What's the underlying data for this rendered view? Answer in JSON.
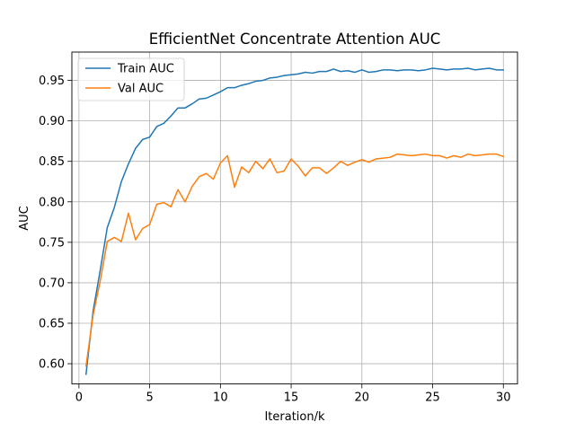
{
  "chart_data": {
    "type": "line",
    "title": "EfficientNet Concentrate Attention AUC",
    "xlabel": "Iteration/k",
    "ylabel": "AUC",
    "xlim": [
      -0.5,
      31.0
    ],
    "ylim": [
      0.575,
      0.985
    ],
    "xticks": [
      0,
      5,
      10,
      15,
      20,
      25,
      30
    ],
    "xtick_labels": [
      "0",
      "5",
      "10",
      "15",
      "20",
      "25",
      "30"
    ],
    "yticks": [
      0.6,
      0.65,
      0.7,
      0.75,
      0.8,
      0.85,
      0.9,
      0.95
    ],
    "ytick_labels": [
      "0.60",
      "0.65",
      "0.70",
      "0.75",
      "0.80",
      "0.85",
      "0.90",
      "0.95"
    ],
    "grid": true,
    "legend_position": "upper-left",
    "x": [
      0.5,
      1.0,
      1.5,
      2.0,
      2.5,
      3.0,
      3.5,
      4.0,
      4.5,
      5.0,
      5.5,
      6.0,
      6.5,
      7.0,
      7.5,
      8.0,
      8.5,
      9.0,
      9.5,
      10.0,
      10.5,
      11.0,
      11.5,
      12.0,
      12.5,
      13.0,
      13.5,
      14.0,
      14.5,
      15.0,
      15.5,
      16.0,
      16.5,
      17.0,
      17.5,
      18.0,
      18.5,
      19.0,
      19.5,
      20.0,
      20.5,
      21.0,
      21.5,
      22.0,
      22.5,
      23.0,
      23.5,
      24.0,
      24.5,
      25.0,
      25.5,
      26.0,
      26.5,
      27.0,
      27.5,
      28.0,
      28.5,
      29.0,
      29.5,
      30.0
    ],
    "series": [
      {
        "name": "Train AUC",
        "color": "#1f77b4",
        "values": [
          0.587,
          0.665,
          0.715,
          0.768,
          0.793,
          0.825,
          0.847,
          0.866,
          0.877,
          0.88,
          0.893,
          0.897,
          0.906,
          0.916,
          0.916,
          0.921,
          0.927,
          0.928,
          0.932,
          0.936,
          0.941,
          0.941,
          0.944,
          0.946,
          0.949,
          0.95,
          0.953,
          0.954,
          0.956,
          0.957,
          0.958,
          0.96,
          0.959,
          0.961,
          0.961,
          0.964,
          0.961,
          0.962,
          0.96,
          0.963,
          0.96,
          0.961,
          0.963,
          0.963,
          0.962,
          0.963,
          0.963,
          0.962,
          0.963,
          0.965,
          0.964,
          0.963,
          0.964,
          0.964,
          0.965,
          0.963,
          0.964,
          0.965,
          0.963,
          0.963
        ]
      },
      {
        "name": "Val AUC",
        "color": "#ff7f0e",
        "values": [
          0.597,
          0.66,
          0.702,
          0.751,
          0.756,
          0.751,
          0.786,
          0.753,
          0.767,
          0.772,
          0.797,
          0.799,
          0.794,
          0.815,
          0.8,
          0.819,
          0.831,
          0.835,
          0.828,
          0.848,
          0.857,
          0.818,
          0.843,
          0.836,
          0.85,
          0.841,
          0.853,
          0.836,
          0.838,
          0.853,
          0.844,
          0.832,
          0.842,
          0.842,
          0.835,
          0.842,
          0.85,
          0.845,
          0.849,
          0.852,
          0.849,
          0.853,
          0.854,
          0.855,
          0.859,
          0.858,
          0.857,
          0.858,
          0.859,
          0.857,
          0.857,
          0.854,
          0.857,
          0.855,
          0.859,
          0.857,
          0.858,
          0.859,
          0.859,
          0.856
        ]
      }
    ]
  }
}
